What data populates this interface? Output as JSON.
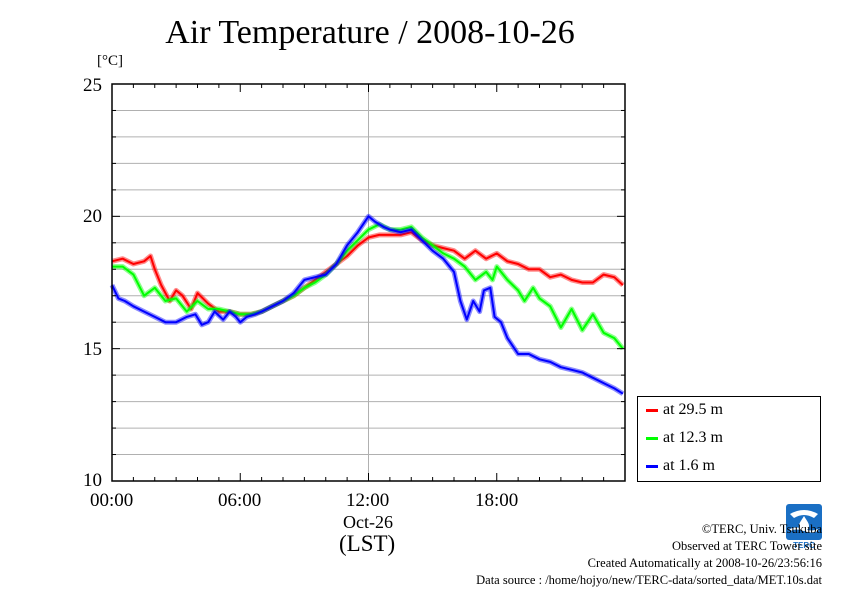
{
  "title": "Air Temperature / 2008-10-26",
  "unit": "[°C]",
  "x_axis": {
    "tick_labels": [
      "00:00",
      "06:00",
      "12:00",
      "18:00"
    ],
    "date_label": "Oct-26",
    "tz_label": "(LST)"
  },
  "y_axis": {
    "tick_labels": [
      "25",
      "20",
      "15",
      "10"
    ]
  },
  "legend": [
    {
      "label": "at 29.5 m",
      "color": "#ff0000"
    },
    {
      "label": "at 12.3 m",
      "color": "#00ff00"
    },
    {
      "label": "at 1.6 m",
      "color": "#0000ff"
    }
  ],
  "footer": {
    "copyright": "©TERC, Univ. Tsukuba",
    "observed": "Observed at TERC Tower site",
    "created": "Created Automatically at 2008-10-26/23:56:16",
    "source": "Data source : /home/hojyo/new/TERC-data/sorted_data/MET.10s.dat"
  },
  "logo_text": "TERC",
  "chart_data": {
    "type": "line",
    "title": "Air Temperature / 2008-10-26",
    "ylabel": "[°C]",
    "xlabel": "(LST)",
    "xlim": [
      0,
      24
    ],
    "ylim": [
      10,
      25
    ],
    "grid": true,
    "legend_position": "bottom-right outside",
    "series": [
      {
        "name": "at 29.5 m",
        "color": "#ff0000",
        "x": [
          0,
          0.5,
          1,
          1.5,
          1.8,
          2,
          2.3,
          2.7,
          3,
          3.3,
          3.7,
          4,
          4.5,
          5,
          5.5,
          6,
          6.5,
          7,
          7.5,
          8,
          8.5,
          9,
          9.5,
          10,
          10.5,
          11,
          11.5,
          12,
          12.5,
          13,
          13.5,
          14,
          14.5,
          15,
          15.5,
          16,
          16.5,
          17,
          17.5,
          18,
          18.5,
          19,
          19.5,
          20,
          20.5,
          21,
          21.5,
          22,
          22.5,
          23,
          23.5,
          23.9
        ],
        "y": [
          18.3,
          18.4,
          18.2,
          18.3,
          18.5,
          18.0,
          17.4,
          16.8,
          17.2,
          17.0,
          16.5,
          17.1,
          16.7,
          16.4,
          16.4,
          16.3,
          16.3,
          16.4,
          16.6,
          16.8,
          17.0,
          17.3,
          17.6,
          17.9,
          18.2,
          18.5,
          18.9,
          19.2,
          19.3,
          19.3,
          19.3,
          19.4,
          19.1,
          18.9,
          18.8,
          18.7,
          18.4,
          18.7,
          18.4,
          18.6,
          18.3,
          18.2,
          18.0,
          18.0,
          17.7,
          17.8,
          17.6,
          17.5,
          17.5,
          17.8,
          17.7,
          17.4
        ]
      },
      {
        "name": "at 12.3 m",
        "color": "#00ff00",
        "x": [
          0,
          0.5,
          1,
          1.5,
          2,
          2.5,
          3,
          3.5,
          4,
          4.5,
          5,
          5.5,
          6,
          6.5,
          7,
          7.5,
          8,
          8.5,
          9,
          9.5,
          10,
          10.5,
          11,
          11.5,
          12,
          12.5,
          13,
          13.5,
          14,
          14.5,
          15,
          15.5,
          16,
          16.5,
          17,
          17.5,
          17.8,
          18,
          18.5,
          19,
          19.3,
          19.7,
          20,
          20.5,
          21,
          21.5,
          22,
          22.5,
          23,
          23.5,
          23.9
        ],
        "y": [
          18.1,
          18.1,
          17.8,
          17.0,
          17.3,
          16.8,
          16.9,
          16.4,
          16.8,
          16.5,
          16.5,
          16.4,
          16.3,
          16.3,
          16.4,
          16.6,
          16.8,
          17.0,
          17.3,
          17.5,
          17.8,
          18.2,
          18.7,
          19.1,
          19.5,
          19.7,
          19.5,
          19.5,
          19.6,
          19.2,
          18.9,
          18.6,
          18.4,
          18.1,
          17.6,
          17.9,
          17.6,
          18.1,
          17.6,
          17.2,
          16.8,
          17.3,
          16.9,
          16.6,
          15.8,
          16.5,
          15.7,
          16.3,
          15.6,
          15.4,
          15.0
        ]
      },
      {
        "name": "at 1.6 m",
        "color": "#0000ff",
        "x": [
          0,
          0.3,
          0.6,
          1,
          1.5,
          2,
          2.5,
          3,
          3.5,
          3.9,
          4.2,
          4.5,
          4.8,
          5.2,
          5.5,
          5.8,
          6,
          6.3,
          6.7,
          7,
          7.5,
          8,
          8.5,
          9,
          9.5,
          10,
          10.5,
          11,
          11.5,
          12,
          12.3,
          12.7,
          13,
          13.5,
          14,
          14.5,
          15,
          15.5,
          16,
          16.3,
          16.6,
          16.9,
          17.2,
          17.4,
          17.7,
          17.9,
          18.2,
          18.5,
          19,
          19.5,
          20,
          20.5,
          21,
          21.5,
          22,
          22.5,
          23,
          23.5,
          23.9
        ],
        "y": [
          17.4,
          16.9,
          16.8,
          16.6,
          16.4,
          16.2,
          16.0,
          16.0,
          16.2,
          16.3,
          15.9,
          16.0,
          16.4,
          16.1,
          16.4,
          16.2,
          16.0,
          16.2,
          16.3,
          16.4,
          16.6,
          16.8,
          17.1,
          17.6,
          17.7,
          17.8,
          18.2,
          18.9,
          19.4,
          20.0,
          19.8,
          19.6,
          19.5,
          19.4,
          19.5,
          19.1,
          18.7,
          18.4,
          17.9,
          16.8,
          16.1,
          16.8,
          16.4,
          17.2,
          17.3,
          16.2,
          16.0,
          15.4,
          14.8,
          14.8,
          14.6,
          14.5,
          14.3,
          14.2,
          14.1,
          13.9,
          13.7,
          13.5,
          13.3
        ]
      }
    ]
  }
}
